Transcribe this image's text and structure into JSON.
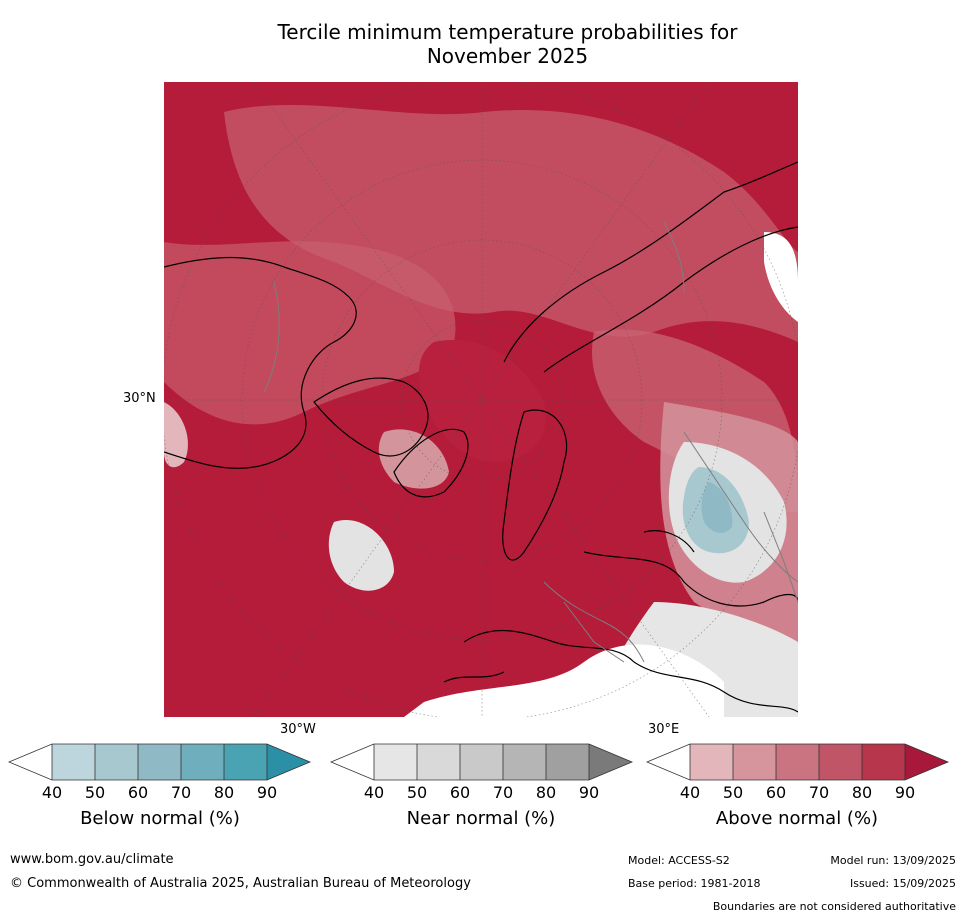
{
  "title_line1": "Tercile minimum temperature probabilities for",
  "title_line2": "November 2025",
  "map": {
    "lat_label": "30°N",
    "lon_label_west": "30°W",
    "lon_label_east": "30°E"
  },
  "colorbars": [
    {
      "label": "Below normal (%)",
      "ticks": [
        "40",
        "50",
        "60",
        "70",
        "80",
        "90"
      ],
      "colors": [
        "#ffffff",
        "#bdd6dd",
        "#a8c8d0",
        "#8fb9c5",
        "#6eaebd",
        "#4aa3b3",
        "#2b8fa6"
      ]
    },
    {
      "label": "Near normal (%)",
      "ticks": [
        "40",
        "50",
        "60",
        "70",
        "80",
        "90"
      ],
      "colors": [
        "#ffffff",
        "#e6e6e6",
        "#d9d9d9",
        "#c9c9c9",
        "#b5b5b5",
        "#a0a0a0",
        "#7a7a7a"
      ]
    },
    {
      "label": "Above normal (%)",
      "ticks": [
        "40",
        "50",
        "60",
        "70",
        "80",
        "90"
      ],
      "colors": [
        "#ffffff",
        "#e3b6bc",
        "#d6959d",
        "#c97480",
        "#c05568",
        "#b8364c",
        "#a8183a"
      ]
    }
  ],
  "footer": {
    "website": "www.bom.gov.au/climate",
    "copyright": "© Commonwealth of Australia 2025, Australian Bureau of Meteorology",
    "model": "Model: ACCESS-S2",
    "base_period": "Base period: 1981-2018",
    "model_run": "Model run: 13/09/2025",
    "issued": "Issued: 15/09/2025",
    "disclaimer": "Boundaries are not considered authoritative"
  }
}
